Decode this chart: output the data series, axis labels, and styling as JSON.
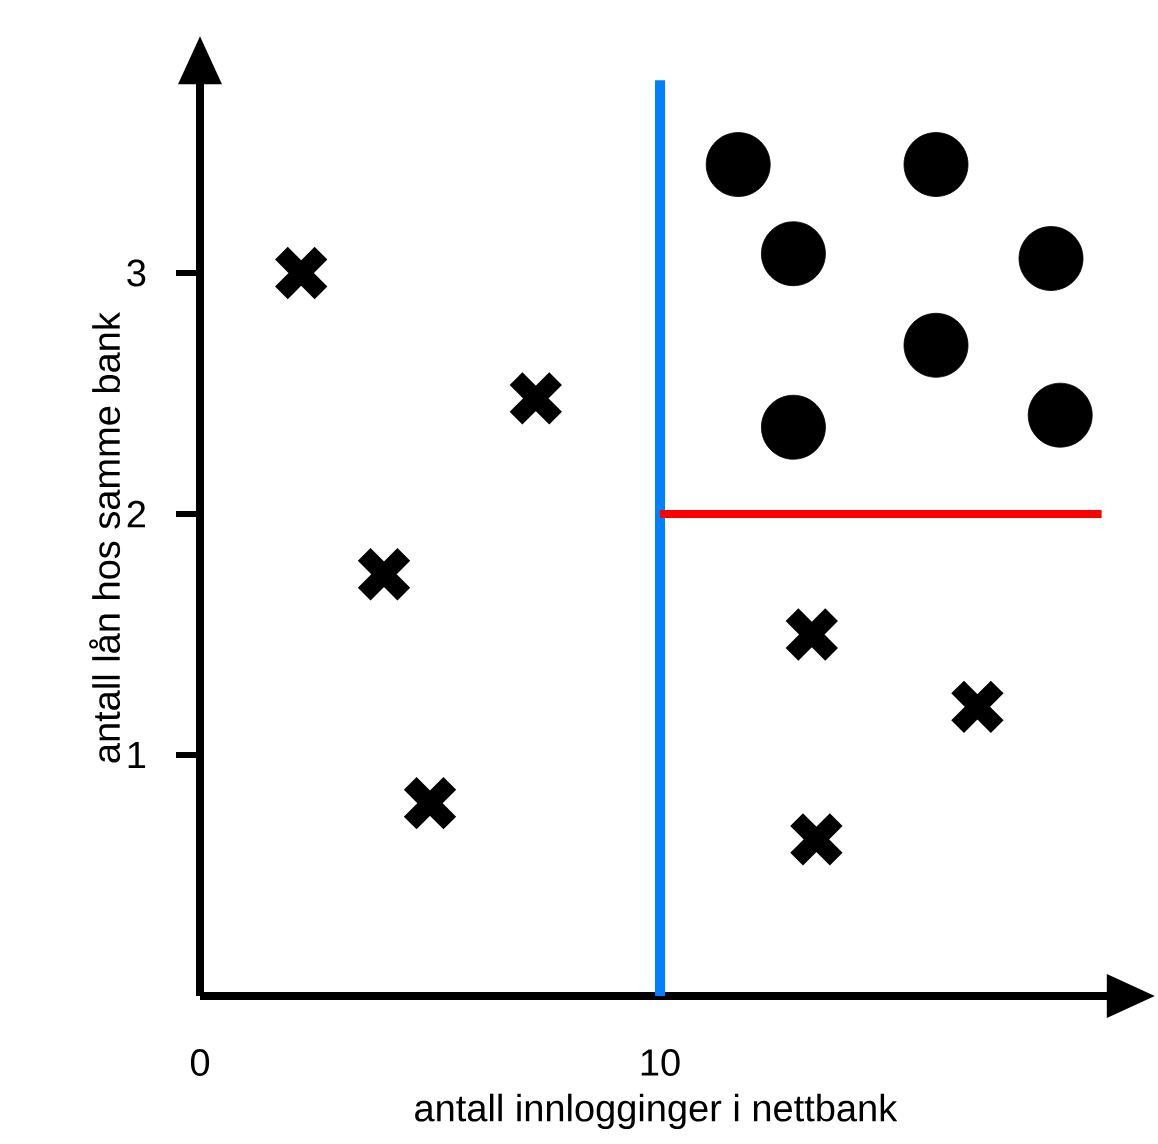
{
  "chart_data": {
    "type": "scatter",
    "xlabel": "antall innlogginger i nettbank",
    "ylabel": "antall lån hos samme bank",
    "xlim": [
      0,
      19.8
    ],
    "ylim": [
      0,
      3.8
    ],
    "xticks": [
      0,
      10
    ],
    "yticks": [
      1,
      2,
      3
    ],
    "series": [
      {
        "color": "#000000",
        "marker": "cross",
        "x": [
          2.2,
          7.3,
          4.0,
          5.0,
          13.3,
          16.9,
          13.4
        ],
        "values": [
          3.0,
          2.48,
          1.75,
          0.8,
          1.5,
          1.2,
          0.65
        ]
      },
      {
        "color": "#000000",
        "marker": "circle",
        "x": [
          11.7,
          16.0,
          12.9,
          18.5,
          16.0,
          12.9,
          18.7
        ],
        "values": [
          3.45,
          3.45,
          3.08,
          3.06,
          2.7,
          2.36,
          2.41
        ]
      },
      {
        "type": "line",
        "color": "#ff0000",
        "marker": "none",
        "x": [
          10,
          19.6
        ],
        "values": [
          2,
          2
        ]
      }
    ],
    "ref_lines": [
      {
        "axis": "x",
        "value": 10,
        "color": "#0080ff"
      }
    ]
  }
}
